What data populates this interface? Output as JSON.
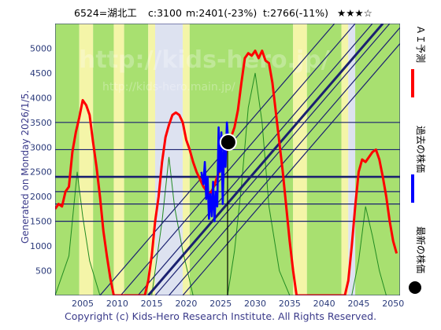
{
  "header": {
    "code_name": "6524=湖北工",
    "current": "c:3100",
    "mean": "m:2401(-23%)",
    "target": "t:2766(-11%)",
    "stars": "★★★☆"
  },
  "side_note": "Generated on Monday 2026/1/5.",
  "watermark": {
    "main": "http://kids-hero.jp/",
    "sub": "http://kids-hero.main.jp/"
  },
  "footer": "Copyright (c) Kids-Hero Research Institute. All Rights Reserved.",
  "legend": [
    {
      "label": "ＡＩ予測",
      "color": "#ff0000"
    },
    {
      "label": "過去の株価",
      "color": "#0000ff"
    },
    {
      "label": "最新の株価",
      "color": "#000000"
    }
  ],
  "colors": {
    "green": "#a8e070",
    "yellow": "#f4f5a8",
    "light": "#dde2f0",
    "grid": "#1a2070"
  },
  "chart_data": {
    "type": "line",
    "xlim": [
      2001,
      2051
    ],
    "ylim": [
      0,
      5500
    ],
    "x_ticks": [
      2005,
      2010,
      2015,
      2020,
      2025,
      2030,
      2035,
      2040,
      2045,
      2050
    ],
    "y_ticks": [
      500,
      1000,
      1500,
      2000,
      2500,
      3000,
      3500,
      4000,
      4500,
      5000
    ],
    "horizontal_levels": [
      1500,
      1850,
      2100,
      2400,
      2950,
      3500
    ],
    "diagonal_lines": [
      [
        [
          2014.5,
          0
        ],
        [
          2048.5,
          5500
        ]
      ],
      [
        [
          2017.5,
          0
        ],
        [
          2051.5,
          5500
        ]
      ],
      [
        [
          2010.5,
          0
        ],
        [
          2044.5,
          5500
        ]
      ],
      [
        [
          2015.5,
          0
        ],
        [
          2049.5,
          5500
        ]
      ],
      [
        [
          2013,
          0
        ],
        [
          2047,
          5500
        ]
      ],
      [
        [
          2019.5,
          0
        ],
        [
          2053.5,
          5500
        ]
      ],
      [
        [
          2007.5,
          0
        ],
        [
          2041.5,
          5500
        ]
      ]
    ],
    "vertical_marker_x": 2026,
    "latest_point": {
      "x": 2026.1,
      "y": 3100
    },
    "series": [
      {
        "name": "ＡＩ予測",
        "color": "#ff0000",
        "points": [
          [
            2001,
            1750
          ],
          [
            2001.5,
            1850
          ],
          [
            2002,
            1800
          ],
          [
            2002.5,
            2100
          ],
          [
            2003,
            2200
          ],
          [
            2003.5,
            2900
          ],
          [
            2004,
            3300
          ],
          [
            2004.5,
            3600
          ],
          [
            2005,
            3950
          ],
          [
            2005.5,
            3850
          ],
          [
            2006,
            3650
          ],
          [
            2006.5,
            3100
          ],
          [
            2007,
            2600
          ],
          [
            2007.5,
            2000
          ],
          [
            2008,
            1300
          ],
          [
            2008.5,
            800
          ],
          [
            2009,
            350
          ],
          [
            2009.5,
            0
          ],
          [
            2014,
            0
          ],
          [
            2014.5,
            300
          ],
          [
            2015,
            800
          ],
          [
            2015.5,
            1500
          ],
          [
            2016,
            2000
          ],
          [
            2016.5,
            2700
          ],
          [
            2017,
            3200
          ],
          [
            2017.5,
            3450
          ],
          [
            2018,
            3650
          ],
          [
            2018.5,
            3700
          ],
          [
            2019,
            3650
          ],
          [
            2019.5,
            3500
          ],
          [
            2020,
            3150
          ],
          [
            2020.5,
            2950
          ],
          [
            2021,
            2700
          ],
          [
            2021.5,
            2500
          ],
          [
            2022,
            2350
          ],
          [
            2022.5,
            2200
          ],
          [
            2023,
            2100
          ],
          [
            2023.5,
            2050
          ],
          [
            2024,
            2200
          ],
          [
            2024.5,
            2400
          ],
          [
            2025,
            2600
          ],
          [
            2025.5,
            2800
          ],
          [
            2026,
            3000
          ],
          [
            2026.5,
            3200
          ],
          [
            2027,
            3400
          ],
          [
            2027.5,
            3750
          ],
          [
            2028,
            4300
          ],
          [
            2028.5,
            4800
          ],
          [
            2029,
            4900
          ],
          [
            2029.5,
            4850
          ],
          [
            2030,
            4950
          ],
          [
            2030.5,
            4800
          ],
          [
            2031,
            4950
          ],
          [
            2031.5,
            4750
          ],
          [
            2032,
            4700
          ],
          [
            2032.5,
            4300
          ],
          [
            2033,
            3700
          ],
          [
            2033.5,
            3100
          ],
          [
            2034,
            2500
          ],
          [
            2034.5,
            1800
          ],
          [
            2035,
            1100
          ],
          [
            2035.5,
            500
          ],
          [
            2036,
            0
          ],
          [
            2039.5,
            0
          ],
          [
            2040,
            0
          ],
          [
            2043,
            0
          ],
          [
            2043.5,
            300
          ],
          [
            2044,
            1000
          ],
          [
            2044.5,
            1800
          ],
          [
            2045,
            2500
          ],
          [
            2045.5,
            2750
          ],
          [
            2046,
            2700
          ],
          [
            2046.5,
            2800
          ],
          [
            2047,
            2900
          ],
          [
            2047.5,
            2950
          ],
          [
            2048,
            2750
          ],
          [
            2048.5,
            2400
          ],
          [
            2049,
            2000
          ],
          [
            2049.5,
            1500
          ],
          [
            2050,
            1100
          ],
          [
            2050.5,
            850
          ]
        ]
      },
      {
        "name": "過去の株価",
        "color": "#0000ff",
        "points": [
          [
            2022.2,
            2500
          ],
          [
            2022.5,
            2250
          ],
          [
            2022.7,
            2700
          ],
          [
            2022.9,
            1950
          ],
          [
            2023.1,
            2400
          ],
          [
            2023.3,
            1550
          ],
          [
            2023.5,
            2050
          ],
          [
            2023.7,
            1600
          ],
          [
            2023.9,
            2300
          ],
          [
            2024.1,
            1500
          ],
          [
            2024.3,
            2100
          ],
          [
            2024.5,
            1800
          ],
          [
            2024.7,
            3400
          ],
          [
            2024.9,
            2500
          ],
          [
            2025.1,
            3300
          ],
          [
            2025.3,
            1850
          ],
          [
            2025.5,
            3100
          ],
          [
            2025.7,
            2600
          ],
          [
            2025.9,
            3500
          ],
          [
            2026.1,
            3100
          ]
        ]
      },
      {
        "name": "",
        "color": "#228b22",
        "points": [
          [
            2001,
            0
          ],
          [
            2003,
            800
          ],
          [
            2004.2,
            2500
          ],
          [
            2005,
            1600
          ],
          [
            2006,
            700
          ],
          [
            2007.5,
            0
          ],
          [
            2015,
            0
          ],
          [
            2016.5,
            1500
          ],
          [
            2017.5,
            2800
          ],
          [
            2018.3,
            1800
          ],
          [
            2019.5,
            900
          ],
          [
            2021,
            0
          ],
          [
            2026,
            0
          ],
          [
            2027,
            900
          ],
          [
            2028,
            2200
          ],
          [
            2029,
            3800
          ],
          [
            2030,
            4500
          ],
          [
            2031,
            3500
          ],
          [
            2032,
            1800
          ],
          [
            2033.5,
            500
          ],
          [
            2035,
            0
          ],
          [
            2044,
            0
          ],
          [
            2045,
            700
          ],
          [
            2046,
            1800
          ],
          [
            2047,
            1200
          ],
          [
            2048,
            500
          ],
          [
            2049,
            0
          ]
        ]
      }
    ],
    "background_bands": [
      {
        "from": 2001,
        "to": 2004.5,
        "color": "green"
      },
      {
        "from": 2004.5,
        "to": 2006.5,
        "color": "yellow"
      },
      {
        "from": 2006.5,
        "to": 2009.5,
        "color": "green"
      },
      {
        "from": 2009.5,
        "to": 2011,
        "color": "yellow"
      },
      {
        "from": 2011,
        "to": 2014.5,
        "color": "green"
      },
      {
        "from": 2014.5,
        "to": 2015.5,
        "color": "yellow"
      },
      {
        "from": 2015.5,
        "to": 2019.5,
        "color": "light"
      },
      {
        "from": 2019.5,
        "to": 2020.5,
        "color": "yellow"
      },
      {
        "from": 2020.5,
        "to": 2035.5,
        "color": "green"
      },
      {
        "from": 2035.5,
        "to": 2037.5,
        "color": "yellow"
      },
      {
        "from": 2037.5,
        "to": 2042.5,
        "color": "green"
      },
      {
        "from": 2042.5,
        "to": 2043.5,
        "color": "yellow"
      },
      {
        "from": 2043.5,
        "to": 2044.5,
        "color": "light"
      },
      {
        "from": 2044.5,
        "to": 2051,
        "color": "green"
      }
    ]
  }
}
